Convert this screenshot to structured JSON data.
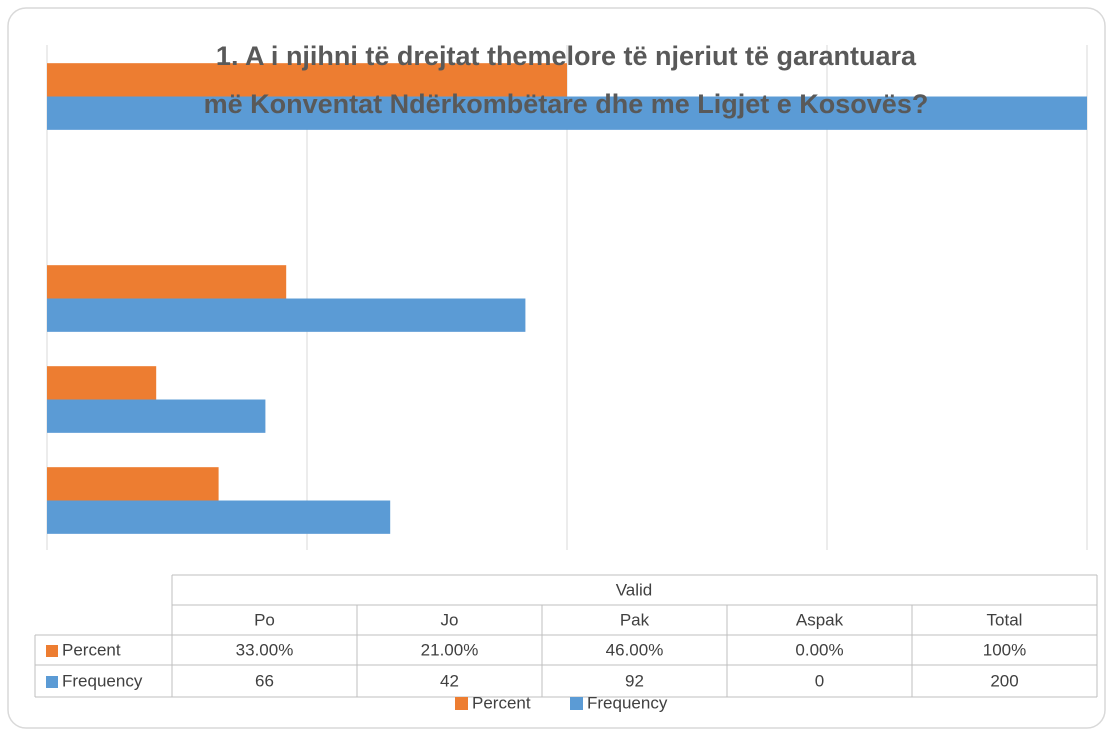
{
  "chart_data": {
    "type": "bar",
    "orientation": "horizontal",
    "title": [
      "1. A i njihni të drejtat themelore të njeriut të garantuara",
      "më Konventat Ndërkombëtare dhe me Ligjet e Kosovës?"
    ],
    "table_header": "Valid",
    "categories": [
      "Po",
      "Jo",
      "Pak",
      "Aspak",
      "Total"
    ],
    "series": [
      {
        "name": "Percent",
        "color": "#ed7d31",
        "values": [
          33,
          21,
          46,
          0,
          100
        ],
        "value_labels": [
          "33.00%",
          "21.00%",
          "46.00%",
          "0.00%",
          "100%"
        ]
      },
      {
        "name": "Frequency",
        "color": "#5b9bd5",
        "values": [
          66,
          42,
          92,
          0,
          200
        ]
      }
    ],
    "xlim": [
      0,
      200
    ],
    "xticks": [
      0,
      50,
      100,
      150,
      200
    ],
    "grid": true,
    "legend": "bottom"
  }
}
